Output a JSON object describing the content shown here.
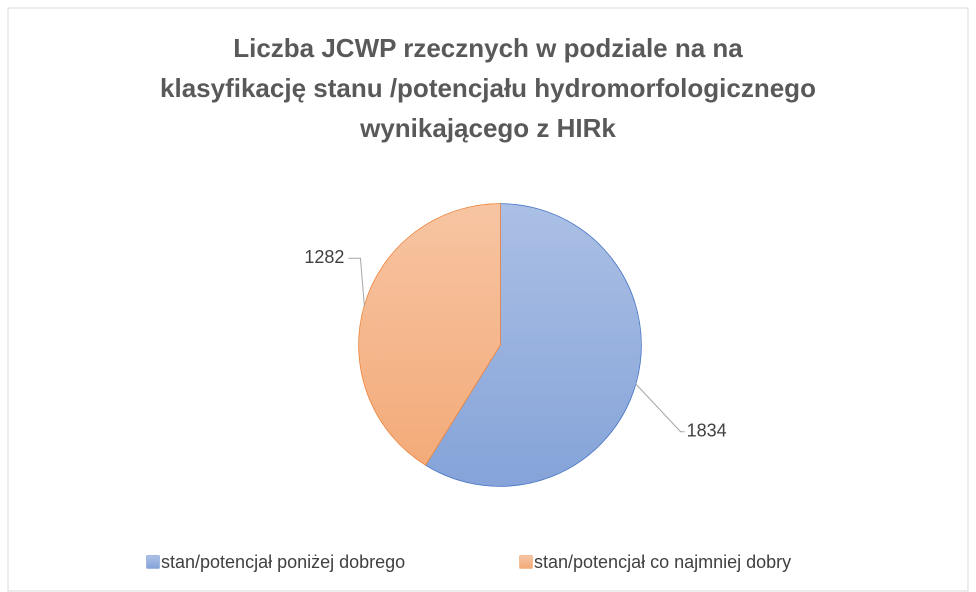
{
  "chart_data": {
    "type": "pie",
    "title": [
      "Liczba JCWP rzecznych w podziale na na",
      "klasyfikację  stanu /potencjału hydromorfologicznego",
      "wynikającego z HIRk"
    ],
    "categories": [
      "stan/potencjał poniżej dobrego",
      "stan/potencjał co najmniej dobry"
    ],
    "values": [
      1834,
      1282
    ],
    "colors": [
      "#4472c4",
      "#ed7d31"
    ],
    "legend": "bottom"
  }
}
